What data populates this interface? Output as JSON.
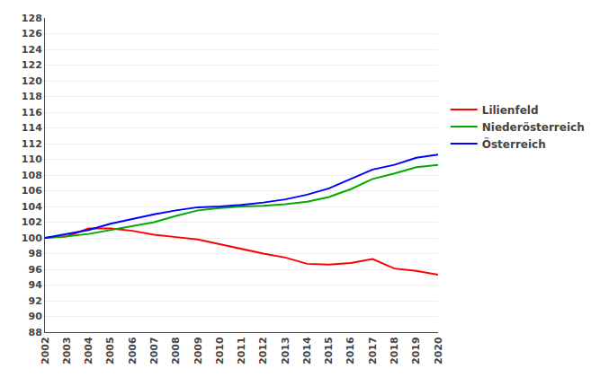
{
  "chart_data": {
    "type": "line",
    "x": [
      2002,
      2003,
      2004,
      2005,
      2006,
      2007,
      2008,
      2009,
      2010,
      2011,
      2012,
      2013,
      2014,
      2015,
      2016,
      2017,
      2018,
      2019,
      2020
    ],
    "series": [
      {
        "name": "Lilienfeld",
        "color": "#ff0000",
        "values": [
          100.0,
          100.2,
          101.2,
          101.2,
          100.9,
          100.4,
          100.1,
          99.8,
          99.2,
          98.6,
          98.0,
          97.5,
          96.7,
          96.6,
          96.8,
          97.3,
          96.1,
          95.8,
          95.3
        ]
      },
      {
        "name": "Niederösterreich",
        "color": "#00aa00",
        "values": [
          100.0,
          100.2,
          100.5,
          101.0,
          101.5,
          102.0,
          102.8,
          103.5,
          103.8,
          104.0,
          104.1,
          104.3,
          104.6,
          105.2,
          106.2,
          107.5,
          108.2,
          109.0,
          109.3
        ]
      },
      {
        "name": "Österreich",
        "color": "#0000ff",
        "values": [
          100.0,
          100.5,
          101.0,
          101.8,
          102.4,
          103.0,
          103.5,
          103.9,
          104.0,
          104.2,
          104.5,
          104.9,
          105.5,
          106.3,
          107.5,
          108.7,
          109.3,
          110.2,
          110.6
        ]
      }
    ],
    "xlim": [
      2002,
      2020
    ],
    "xticks": [
      2002,
      2003,
      2004,
      2005,
      2006,
      2007,
      2008,
      2009,
      2010,
      2011,
      2012,
      2013,
      2014,
      2015,
      2016,
      2017,
      2018,
      2019,
      2020
    ],
    "ylim": [
      88,
      128
    ],
    "yticks": [
      88,
      90,
      92,
      94,
      96,
      98,
      100,
      102,
      104,
      106,
      108,
      110,
      112,
      114,
      116,
      118,
      120,
      122,
      124,
      126,
      128
    ],
    "grid": true,
    "legend": "right"
  }
}
